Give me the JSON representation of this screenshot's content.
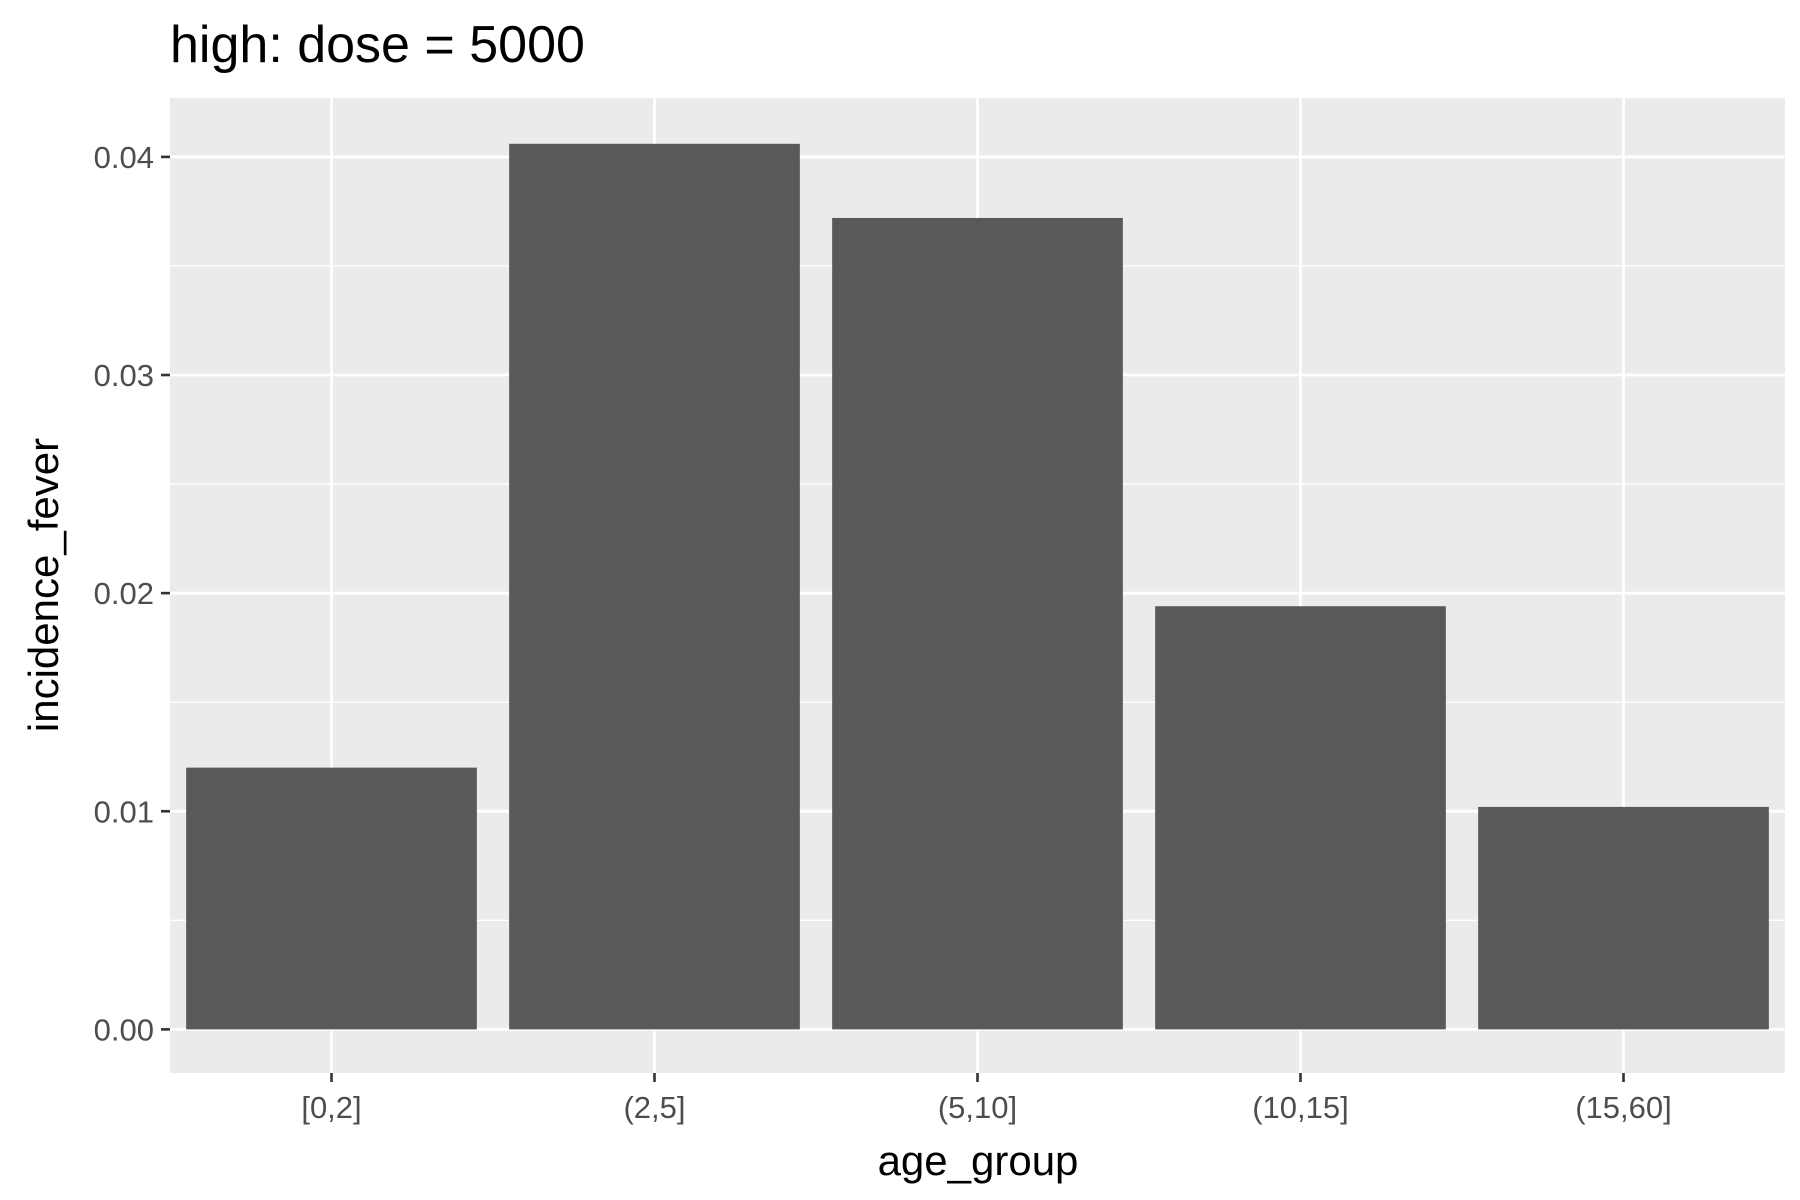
{
  "chart_data": {
    "type": "bar",
    "title": "high: dose = 5000",
    "xlabel": "age_group",
    "ylabel": "incidence_fever",
    "categories": [
      "[0,2]",
      "(2,5]",
      "(5,10]",
      "(10,15]",
      "(15,60]"
    ],
    "values": [
      0.012,
      0.0406,
      0.0372,
      0.0194,
      0.0102
    ],
    "ylim": [
      -0.002,
      0.0427
    ],
    "yticks": [
      0.0,
      0.01,
      0.02,
      0.03,
      0.04
    ],
    "ytick_labels": [
      "0.00",
      "0.01",
      "0.02",
      "0.03",
      "0.04"
    ],
    "grid": true,
    "legend": "none",
    "colors": {
      "bar": "#595959",
      "panel_background": "#ebebeb",
      "grid": "#ffffff",
      "tick_text": "#4d4d4d",
      "tick_mark": "#333333"
    }
  }
}
